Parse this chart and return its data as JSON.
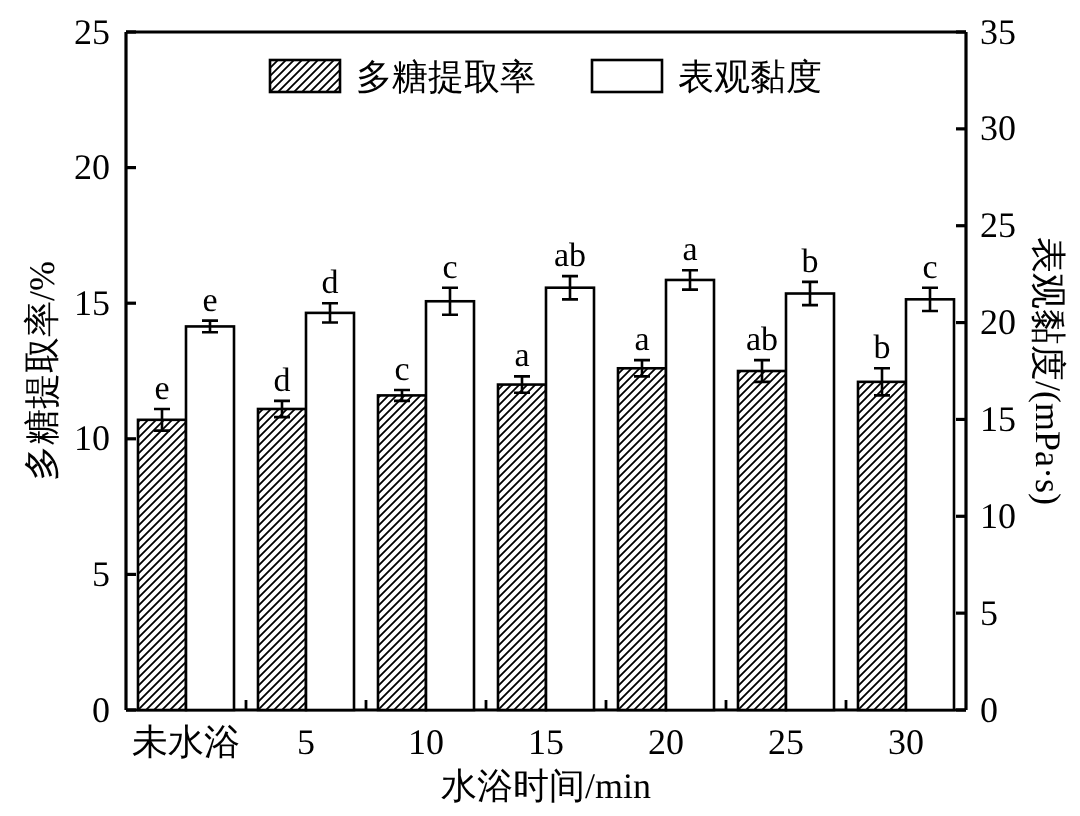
{
  "chart_data": {
    "type": "bar",
    "xlabel": "水浴时间/min",
    "ylabel": "多糖提取率/%",
    "y2label": "表观黏度/(mPa·s)",
    "categories": [
      "未水浴",
      "5",
      "10",
      "15",
      "20",
      "25",
      "30"
    ],
    "series": [
      {
        "name": "多糖提取率",
        "color": "#000000",
        "values": [
          10.7,
          11.1,
          11.6,
          12.0,
          12.6,
          12.5,
          12.1
        ],
        "errors": [
          0.4,
          0.3,
          0.2,
          0.3,
          0.3,
          0.4,
          0.5
        ],
        "value_labels": [
          "e",
          "d",
          "c",
          "a",
          "a",
          "ab",
          "b"
        ]
      },
      {
        "name": "表观黏度",
        "color": "#ffffff",
        "axis": "y2",
        "values": [
          19.8,
          20.5,
          21.1,
          21.8,
          22.2,
          21.5,
          21.2
        ],
        "errors": [
          0.3,
          0.5,
          0.7,
          0.6,
          0.5,
          0.6,
          0.6
        ],
        "value_labels": [
          "e",
          "d",
          "c",
          "ab",
          "a",
          "b",
          "c"
        ]
      }
    ],
    "ylim": [
      0,
      25
    ],
    "yticks": [
      0,
      5,
      10,
      15,
      20,
      25
    ],
    "y2lim": [
      0,
      35
    ],
    "y2ticks": [
      0,
      5,
      10,
      15,
      20,
      25,
      30,
      35
    ],
    "legend": "top"
  }
}
